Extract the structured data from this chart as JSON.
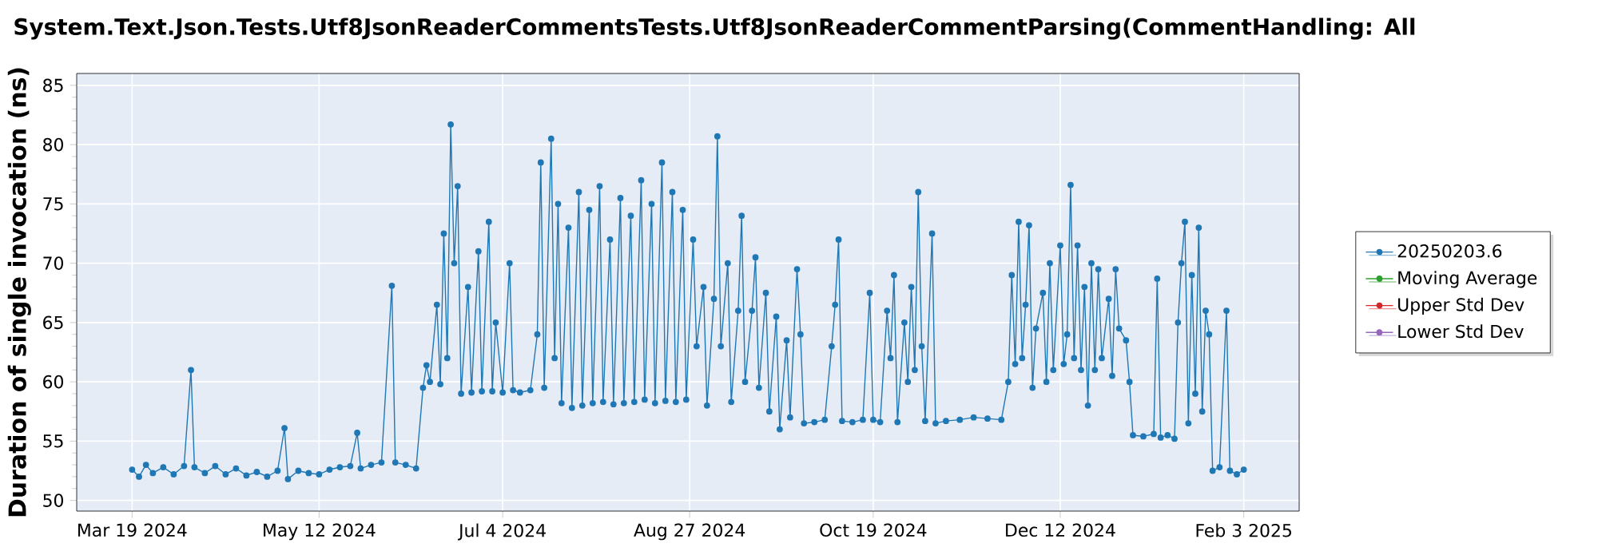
{
  "chart_data": {
    "type": "line",
    "title": "System.Text.Json.Tests.Utf8JsonReaderCommentsTests.Utf8JsonReaderCommentParsing(CommentHandling: All",
    "ylabel": "Duration of single invocation (ns)",
    "x": [
      "2024-03-19",
      "2024-03-21",
      "2024-03-23",
      "2024-03-25",
      "2024-03-28",
      "2024-03-31",
      "2024-04-03",
      "2024-04-05",
      "2024-04-06",
      "2024-04-09",
      "2024-04-12",
      "2024-04-15",
      "2024-04-18",
      "2024-04-21",
      "2024-04-24",
      "2024-04-27",
      "2024-04-30",
      "2024-05-02",
      "2024-05-03",
      "2024-05-06",
      "2024-05-09",
      "2024-05-12",
      "2024-05-15",
      "2024-05-18",
      "2024-05-21",
      "2024-05-23",
      "2024-05-24",
      "2024-05-27",
      "2024-05-30",
      "2024-06-02",
      "2024-06-03",
      "2024-06-06",
      "2024-06-09",
      "2024-06-11",
      "2024-06-12",
      "2024-06-13",
      "2024-06-15",
      "2024-06-16",
      "2024-06-17",
      "2024-06-18",
      "2024-06-19",
      "2024-06-20",
      "2024-06-21",
      "2024-06-22",
      "2024-06-24",
      "2024-06-25",
      "2024-06-27",
      "2024-06-28",
      "2024-06-30",
      "2024-07-01",
      "2024-07-02",
      "2024-07-04",
      "2024-07-06",
      "2024-07-07",
      "2024-07-09",
      "2024-07-12",
      "2024-07-14",
      "2024-07-15",
      "2024-07-16",
      "2024-07-18",
      "2024-07-19",
      "2024-07-20",
      "2024-07-21",
      "2024-07-23",
      "2024-07-24",
      "2024-07-26",
      "2024-07-27",
      "2024-07-29",
      "2024-07-30",
      "2024-08-01",
      "2024-08-02",
      "2024-08-04",
      "2024-08-05",
      "2024-08-07",
      "2024-08-08",
      "2024-08-10",
      "2024-08-11",
      "2024-08-13",
      "2024-08-14",
      "2024-08-16",
      "2024-08-17",
      "2024-08-19",
      "2024-08-20",
      "2024-08-22",
      "2024-08-23",
      "2024-08-25",
      "2024-08-26",
      "2024-08-28",
      "2024-08-29",
      "2024-08-31",
      "2024-09-01",
      "2024-09-03",
      "2024-09-04",
      "2024-09-05",
      "2024-09-07",
      "2024-09-08",
      "2024-09-10",
      "2024-09-11",
      "2024-09-12",
      "2024-09-14",
      "2024-09-15",
      "2024-09-16",
      "2024-09-18",
      "2024-09-19",
      "2024-09-21",
      "2024-09-22",
      "2024-09-24",
      "2024-09-25",
      "2024-09-27",
      "2024-09-28",
      "2024-09-29",
      "2024-10-02",
      "2024-10-05",
      "2024-10-07",
      "2024-10-08",
      "2024-10-09",
      "2024-10-10",
      "2024-10-13",
      "2024-10-16",
      "2024-10-18",
      "2024-10-19",
      "2024-10-21",
      "2024-10-23",
      "2024-10-24",
      "2024-10-25",
      "2024-10-26",
      "2024-10-28",
      "2024-10-29",
      "2024-10-30",
      "2024-10-31",
      "2024-11-01",
      "2024-11-02",
      "2024-11-03",
      "2024-11-05",
      "2024-11-06",
      "2024-11-09",
      "2024-11-13",
      "2024-11-17",
      "2024-11-21",
      "2024-11-25",
      "2024-11-27",
      "2024-11-28",
      "2024-11-29",
      "2024-11-30",
      "2024-12-01",
      "2024-12-02",
      "2024-12-03",
      "2024-12-04",
      "2024-12-05",
      "2024-12-07",
      "2024-12-08",
      "2024-12-09",
      "2024-12-10",
      "2024-12-12",
      "2024-12-13",
      "2024-12-14",
      "2024-12-15",
      "2024-12-16",
      "2024-12-17",
      "2024-12-18",
      "2024-12-19",
      "2024-12-20",
      "2024-12-21",
      "2024-12-22",
      "2024-12-23",
      "2024-12-24",
      "2024-12-26",
      "2024-12-27",
      "2024-12-28",
      "2024-12-29",
      "2024-12-31",
      "2025-01-01",
      "2025-01-02",
      "2025-01-05",
      "2025-01-08",
      "2025-01-09",
      "2025-01-10",
      "2025-01-12",
      "2025-01-14",
      "2025-01-15",
      "2025-01-16",
      "2025-01-17",
      "2025-01-18",
      "2025-01-19",
      "2025-01-20",
      "2025-01-21",
      "2025-01-22",
      "2025-01-23",
      "2025-01-24",
      "2025-01-25",
      "2025-01-27",
      "2025-01-29",
      "2025-01-30",
      "2025-02-01",
      "2025-02-03"
    ],
    "series": [
      {
        "name": "20250203.6",
        "color": "#1f77b4",
        "values": [
          52.6,
          52.0,
          53.0,
          52.3,
          52.8,
          52.2,
          52.9,
          61.0,
          52.8,
          52.3,
          52.9,
          52.2,
          52.7,
          52.1,
          52.4,
          52.0,
          52.5,
          56.1,
          51.8,
          52.5,
          52.3,
          52.2,
          52.6,
          52.8,
          52.9,
          55.7,
          52.7,
          53.0,
          53.2,
          68.1,
          53.2,
          53.0,
          52.7,
          59.5,
          61.4,
          60.0,
          66.5,
          59.8,
          72.5,
          62.0,
          81.7,
          70.0,
          76.5,
          59.0,
          68.0,
          59.1,
          71.0,
          59.2,
          73.5,
          59.2,
          65.0,
          59.1,
          70.0,
          59.3,
          59.1,
          59.3,
          64.0,
          78.5,
          59.5,
          80.5,
          62.0,
          75.0,
          58.2,
          73.0,
          57.8,
          76.0,
          58.0,
          74.5,
          58.2,
          76.5,
          58.3,
          72.0,
          58.1,
          75.5,
          58.2,
          74.0,
          58.3,
          77.0,
          58.5,
          75.0,
          58.2,
          78.5,
          58.4,
          76.0,
          58.3,
          74.5,
          58.5,
          72.0,
          63.0,
          68.0,
          58.0,
          67.0,
          80.7,
          63.0,
          70.0,
          58.3,
          66.0,
          74.0,
          60.0,
          66.0,
          70.5,
          59.5,
          67.5,
          57.5,
          65.5,
          56.0,
          63.5,
          57.0,
          69.5,
          64.0,
          56.5,
          56.6,
          56.8,
          63.0,
          66.5,
          72.0,
          56.7,
          56.6,
          56.8,
          67.5,
          56.8,
          56.6,
          66.0,
          62.0,
          69.0,
          56.6,
          65.0,
          60.0,
          68.0,
          61.0,
          76.0,
          63.0,
          56.7,
          72.5,
          56.5,
          56.7,
          56.8,
          57.0,
          56.9,
          56.8,
          60.0,
          69.0,
          61.5,
          73.5,
          62.0,
          66.5,
          73.2,
          59.5,
          64.5,
          67.5,
          60.0,
          70.0,
          61.0,
          71.5,
          61.5,
          64.0,
          76.6,
          62.0,
          71.5,
          61.0,
          68.0,
          58.0,
          70.0,
          61.0,
          69.5,
          62.0,
          67.0,
          60.5,
          69.5,
          64.5,
          63.5,
          60.0,
          55.5,
          55.4,
          55.6,
          68.7,
          55.3,
          55.5,
          55.2,
          65.0,
          70.0,
          73.5,
          56.5,
          69.0,
          59.0,
          73.0,
          57.5,
          66.0,
          64.0,
          52.5,
          52.8,
          66.0,
          52.5,
          52.2,
          52.6
        ]
      },
      {
        "name": "Moving Average",
        "color": "#2ca02c",
        "values": [
          null,
          null,
          null,
          null,
          null,
          null,
          null,
          null,
          null,
          null,
          null,
          null,
          null,
          null,
          null,
          null,
          null,
          null,
          null,
          null,
          null,
          null,
          null,
          null,
          null,
          null,
          null,
          null,
          null,
          null,
          null,
          null,
          null,
          null,
          null,
          null,
          null,
          null,
          null,
          null,
          null,
          null,
          null,
          null,
          null,
          null,
          null,
          null,
          null,
          null,
          null,
          null,
          null,
          null,
          null,
          null,
          null,
          null,
          null,
          null,
          null,
          null,
          null,
          null,
          null,
          null,
          null,
          null,
          null,
          null,
          null,
          null,
          null,
          null,
          null,
          null,
          null,
          null,
          null,
          null,
          null,
          null,
          null,
          null,
          null,
          null,
          null,
          null,
          null,
          null,
          null,
          null,
          null,
          null,
          null,
          null,
          null,
          null,
          null,
          null,
          null,
          null,
          null,
          null,
          null,
          null,
          null,
          null,
          null,
          null,
          null,
          null,
          null,
          null,
          null,
          null,
          null,
          null,
          null,
          null,
          null,
          null,
          null,
          null,
          null,
          null,
          null,
          null,
          null,
          null,
          null,
          null,
          null,
          null,
          null,
          null,
          null,
          null,
          null,
          null,
          null,
          null,
          null,
          null,
          null,
          null,
          null,
          null,
          null,
          null,
          null,
          null,
          null,
          null,
          null,
          null,
          null,
          null,
          null,
          null,
          null,
          null,
          null,
          null,
          null,
          null,
          null,
          null,
          null,
          null,
          null,
          null,
          null,
          null,
          null,
          null,
          null,
          null,
          null,
          null,
          null,
          null,
          null,
          null,
          null,
          null,
          null,
          null,
          null,
          null,
          null,
          null,
          null,
          null,
          null
        ]
      },
      {
        "name": "Upper Std Dev",
        "color": "#d62728",
        "values": [
          null,
          null,
          null,
          null,
          null,
          null,
          null,
          null,
          null,
          null,
          null,
          null,
          null,
          null,
          null,
          null,
          null,
          null,
          null,
          null,
          null,
          null,
          null,
          null,
          null,
          null,
          null,
          null,
          null,
          null,
          null,
          null,
          null,
          null,
          null,
          null,
          null,
          null,
          null,
          null,
          null,
          null,
          null,
          null,
          null,
          null,
          null,
          null,
          null,
          null,
          null,
          null,
          null,
          null,
          null,
          null,
          null,
          null,
          null,
          null,
          null,
          null,
          null,
          null,
          null,
          null,
          null,
          null,
          null,
          null,
          null,
          null,
          null,
          null,
          null,
          null,
          null,
          null,
          null,
          null,
          null,
          null,
          null,
          null,
          null,
          null,
          null,
          null,
          null,
          null,
          null,
          null,
          null,
          null,
          null,
          null,
          null,
          null,
          null,
          null,
          null,
          null,
          null,
          null,
          null,
          null,
          null,
          null,
          null,
          null,
          null,
          null,
          null,
          null,
          null,
          null,
          null,
          null,
          null,
          null,
          null,
          null,
          null,
          null,
          null,
          null,
          null,
          null,
          null,
          null,
          null,
          null,
          null,
          null,
          null,
          null,
          null,
          null,
          null,
          null,
          null,
          null,
          null,
          null,
          null,
          null,
          null,
          null,
          null,
          null,
          null,
          null,
          null,
          null,
          null,
          null,
          null,
          null,
          null,
          null,
          null,
          null,
          null,
          null,
          null,
          null,
          null,
          null,
          null,
          null,
          null,
          null,
          null,
          null,
          null,
          null,
          null,
          null,
          null,
          null,
          null,
          null,
          null,
          null,
          null,
          null,
          null,
          null,
          null,
          null,
          null,
          null,
          null,
          null,
          null
        ]
      },
      {
        "name": "Lower Std Dev",
        "color": "#9467bd",
        "values": [
          null,
          null,
          null,
          null,
          null,
          null,
          null,
          null,
          null,
          null,
          null,
          null,
          null,
          null,
          null,
          null,
          null,
          null,
          null,
          null,
          null,
          null,
          null,
          null,
          null,
          null,
          null,
          null,
          null,
          null,
          null,
          null,
          null,
          null,
          null,
          null,
          null,
          null,
          null,
          null,
          null,
          null,
          null,
          null,
          null,
          null,
          null,
          null,
          null,
          null,
          null,
          null,
          null,
          null,
          null,
          null,
          null,
          null,
          null,
          null,
          null,
          null,
          null,
          null,
          null,
          null,
          null,
          null,
          null,
          null,
          null,
          null,
          null,
          null,
          null,
          null,
          null,
          null,
          null,
          null,
          null,
          null,
          null,
          null,
          null,
          null,
          null,
          null,
          null,
          null,
          null,
          null,
          null,
          null,
          null,
          null,
          null,
          null,
          null,
          null,
          null,
          null,
          null,
          null,
          null,
          null,
          null,
          null,
          null,
          null,
          null,
          null,
          null,
          null,
          null,
          null,
          null,
          null,
          null,
          null,
          null,
          null,
          null,
          null,
          null,
          null,
          null,
          null,
          null,
          null,
          null,
          null,
          null,
          null,
          null,
          null,
          null,
          null,
          null,
          null,
          null,
          null,
          null,
          null,
          null,
          null,
          null,
          null,
          null,
          null,
          null,
          null,
          null,
          null,
          null,
          null,
          null,
          null,
          null,
          null,
          null,
          null,
          null,
          null,
          null,
          null,
          null,
          null,
          null,
          null,
          null,
          null,
          null,
          null,
          null,
          null,
          null,
          null,
          null,
          null,
          null,
          null,
          null,
          null,
          null,
          null,
          null,
          null,
          null,
          null,
          null,
          null,
          null,
          null,
          null
        ]
      }
    ],
    "xlim": [
      "2024-03-03",
      "2025-02-19"
    ],
    "xticks": [
      {
        "value": "2024-03-19",
        "label": "Mar 19 2024"
      },
      {
        "value": "2024-05-12",
        "label": "May 12 2024"
      },
      {
        "value": "2024-07-04",
        "label": "Jul 4 2024"
      },
      {
        "value": "2024-08-27",
        "label": "Aug 27 2024"
      },
      {
        "value": "2024-10-19",
        "label": "Oct 19 2024"
      },
      {
        "value": "2024-12-12",
        "label": "Dec 12 2024"
      },
      {
        "value": "2025-02-03",
        "label": "Feb 3 2025"
      }
    ],
    "ylim": [
      49.1,
      86
    ],
    "yticks": [
      50,
      55,
      60,
      65,
      70,
      75,
      80,
      85
    ],
    "grid": true,
    "legend": "right",
    "marker": "circle",
    "line_style": "solid"
  }
}
